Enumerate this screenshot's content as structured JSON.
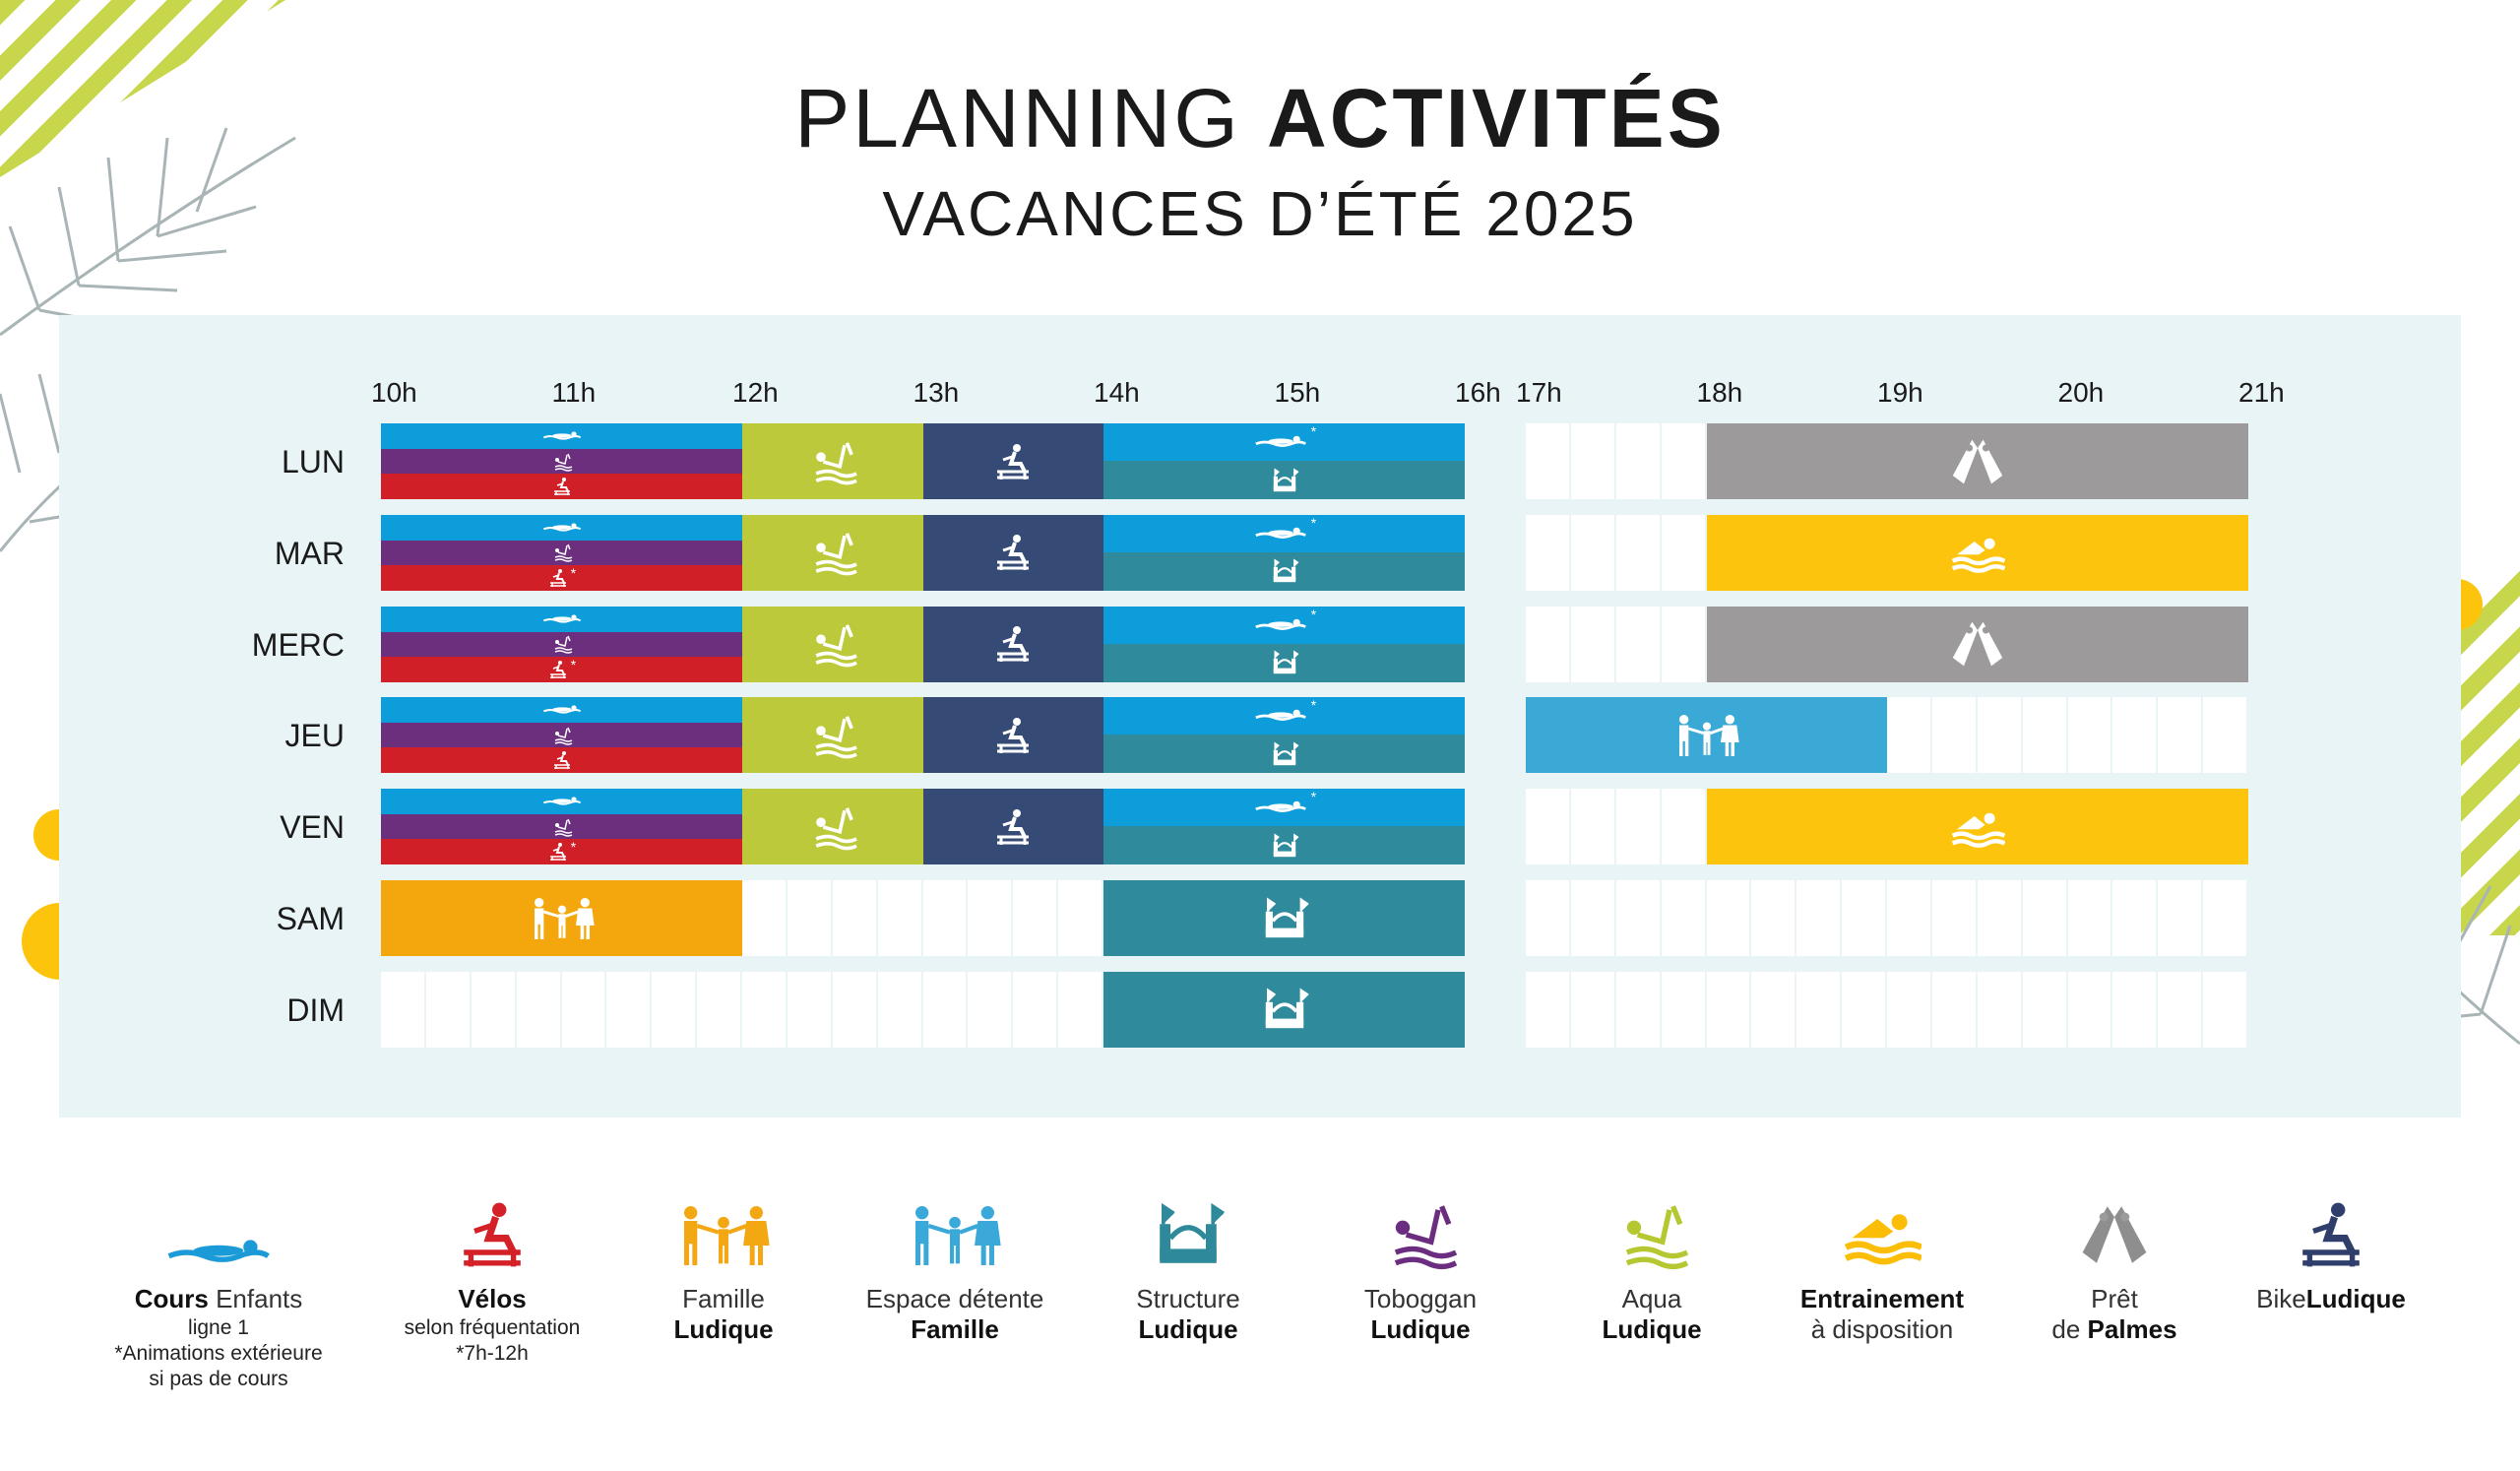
{
  "title": {
    "light": "PLANNING ",
    "bold": "ACTIVITÉS"
  },
  "subtitle": "VACANCES D’ÉTÉ 2025",
  "hours_am": [
    "10h",
    "11h",
    "12h",
    "13h",
    "14h",
    "15h",
    "16h"
  ],
  "hours_pm": [
    "17h",
    "18h",
    "19h",
    "20h",
    "21h"
  ],
  "days": [
    "LUN",
    "MAR",
    "MERC",
    "JEU",
    "VEN",
    "SAM",
    "DIM"
  ],
  "legend": [
    {
      "icon": "swim-lesson-icon",
      "line1_bold": "Cours",
      "line1_rest": " Enfants",
      "line2": "ligne 1",
      "line3": "*Animations extérieure",
      "line4": "si pas de cours",
      "color": "#1a9ad6"
    },
    {
      "icon": "bike-icon",
      "line1_bold": "Vélos",
      "line1_rest": "",
      "line2": "selon fréquentation",
      "line3": "*7h-12h",
      "line4": "",
      "color": "#d42027"
    },
    {
      "icon": "family-icon",
      "line1_bold": "",
      "line1_rest": "Famille",
      "line2_bold": "Ludique",
      "color": "#f3a712"
    },
    {
      "icon": "family-relax-icon",
      "line1_bold": "",
      "line1_rest": "Espace détente",
      "line2_bold": "Famille",
      "color": "#3aa8d8"
    },
    {
      "icon": "inflatable-structure-icon",
      "line1_bold": "",
      "line1_rest": "Structure",
      "line2_bold": "Ludique",
      "color": "#2e8a9a"
    },
    {
      "icon": "slide-icon",
      "line1_bold": "",
      "line1_rest": "Toboggan",
      "line2_bold": "Ludique",
      "color": "#6b2d7f"
    },
    {
      "icon": "aqua-icon",
      "line1_bold": "",
      "line1_rest": "Aqua",
      "line2_bold": "Ludique",
      "color": "#b5c832"
    },
    {
      "icon": "swimmer-icon",
      "line1_bold": "Entrainement",
      "line1_rest": "",
      "line2": "à disposition",
      "color": "#fbbd06"
    },
    {
      "icon": "fins-icon",
      "line1_bold": "",
      "line1_rest": "Prêt",
      "line2_pre": "de ",
      "line2_bold": "Palmes",
      "color": "#8e8e8e"
    },
    {
      "icon": "bike-ludique-icon",
      "line1_rest": "Bike",
      "line1_bold": "Ludique",
      "color": "#2f3e6b"
    }
  ],
  "colors": {
    "blue": "#0e9ddb",
    "purple": "#6b2f7e",
    "red": "#d01f27",
    "lime": "#bcc93b",
    "navy": "#354b76",
    "teal": "#2f8b9c",
    "gray": "#9c9a9a",
    "yellow": "#fcc40c",
    "orange": "#f4a70d",
    "lightblue": "#3aa9d6"
  }
}
